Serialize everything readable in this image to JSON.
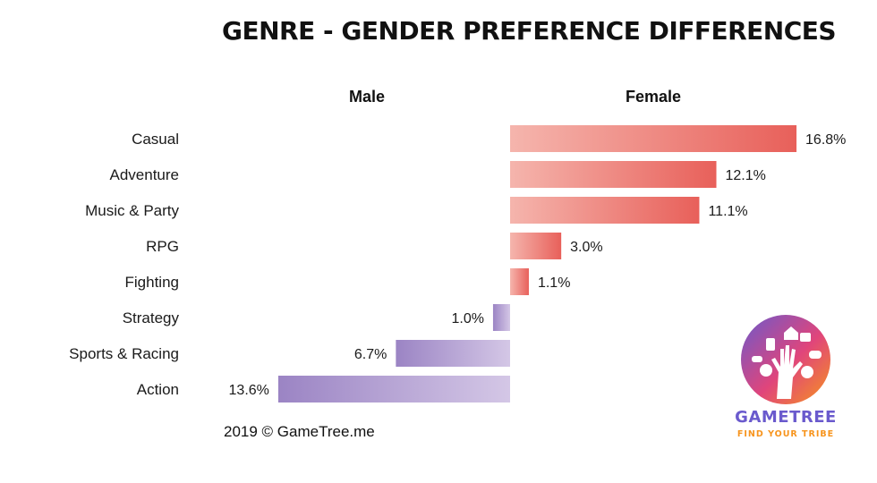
{
  "title": "GENRE - GENDER PREFERENCE DIFFERENCES",
  "footer": "2019 © GameTree.me",
  "logo": {
    "word": "GAMETREE",
    "tagline": "FIND YOUR TRIBE",
    "colors": [
      "#6a5acd",
      "#e0457b",
      "#f7941d"
    ]
  },
  "chart_data": {
    "type": "bar",
    "orientation": "horizontal-diverging",
    "title": "GENRE - GENDER PREFERENCE DIFFERENCES",
    "column_labels": {
      "negative": "Male",
      "positive": "Female"
    },
    "categories": [
      "Casual",
      "Adventure",
      "Music & Party",
      "RPG",
      "Fighting",
      "Strategy",
      "Sports & Racing",
      "Action"
    ],
    "values": [
      16.8,
      12.1,
      11.1,
      3.0,
      1.1,
      -1.0,
      -6.7,
      -13.6
    ],
    "value_labels": [
      "16.8%",
      "12.1%",
      "11.1%",
      "3.0%",
      "1.1%",
      "1.0%",
      "6.7%",
      "13.6%"
    ],
    "unit": "%",
    "colors": {
      "female": "#e8605a",
      "female_light": "#f5b5ad",
      "male": "#9b84c4",
      "male_light": "#d4c7e6"
    },
    "grid": false
  }
}
